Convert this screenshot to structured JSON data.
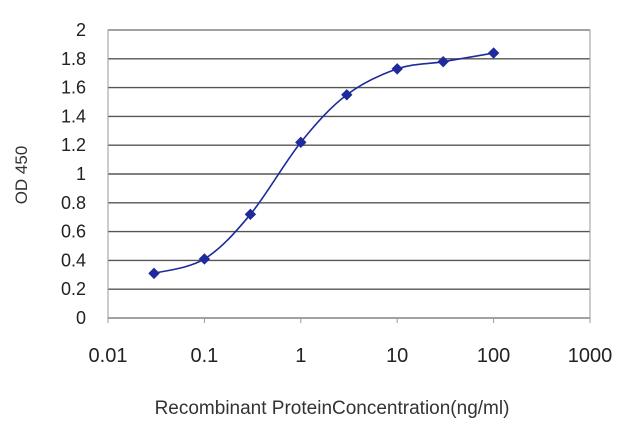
{
  "chart_data": {
    "type": "line",
    "title": "",
    "xlabel": "Recombinant ProteinConcentration(ng/ml)",
    "ylabel": "OD 450",
    "x_scale": "log",
    "xlim": [
      0.01,
      1000
    ],
    "ylim": [
      0,
      2
    ],
    "x_ticks": [
      "0.01",
      "0.1",
      "1",
      "10",
      "100",
      "1000"
    ],
    "y_ticks": [
      "0",
      "0.2",
      "0.4",
      "0.6",
      "0.8",
      "1",
      "1.2",
      "1.4",
      "1.6",
      "1.8",
      "2"
    ],
    "grid": "horizontal",
    "legend": "none",
    "series": [
      {
        "color": "#1f2a9c",
        "marker": "diamond",
        "x": [
          0.03,
          0.1,
          0.3,
          1,
          3,
          10,
          30,
          100
        ],
        "y": [
          0.31,
          0.41,
          0.72,
          1.22,
          1.55,
          1.73,
          1.78,
          1.84
        ]
      }
    ]
  },
  "colors": {
    "grid": "#555555",
    "plot_border": "#9a9a9a",
    "series": "#1f2a9c"
  }
}
